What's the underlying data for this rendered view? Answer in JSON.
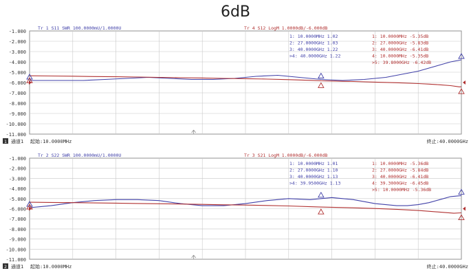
{
  "title": "6dB",
  "colors": {
    "blue": "#4040a8",
    "red": "#b03030",
    "grid": "#c8c8c8",
    "frame": "#909090",
    "text": "#333333"
  },
  "yticks": [
    "-1.000",
    "-2.000",
    "-3.000",
    "-4.000",
    "-5.000",
    "-6.000",
    "-7.000",
    "-8.000",
    "-9.000",
    "-10.000",
    "-11.000"
  ],
  "chart_data": [
    {
      "type": "line",
      "panel_index": 1,
      "header_blue": "Tr 1  S11 SWR 100.0000mU/1.0000U",
      "header_red": "Tr 4  S12 LogM 1.0000dB/-6.000dB",
      "footer_channel": "通道1",
      "footer_start": "起始:10.0000MHz",
      "footer_stop": "终止:40.0000GHz",
      "x_range_ghz": [
        0.01,
        40.0
      ],
      "y_range_display": [
        -11,
        -1
      ],
      "markers_blue": [
        "1:    10.0000MHz  1.02",
        "2:    27.0000GHz  1.03",
        "3:    40.0000GHz  1.22",
        ">4:   40.0000GHz  1.22"
      ],
      "markers_red": [
        "1:    10.0000MHz  -5.35dB",
        "2:    27.0000GHz  -5.83dB",
        "3:    40.0000GHz  -6.41dB",
        "4:    10.0000MHz  -5.35dB",
        ">5:   39.8000GHz  -6.42dB"
      ],
      "series": [
        {
          "name": "S11 SWR",
          "color": "#4040a8",
          "x": [
            0.01,
            1,
            3,
            5,
            7,
            9,
            11,
            13,
            15,
            17,
            19,
            21,
            23,
            25,
            27,
            29,
            31,
            32,
            33,
            34,
            35,
            36,
            37,
            38,
            39,
            40
          ],
          "y": [
            1.02,
            1.02,
            1.02,
            1.02,
            1.03,
            1.04,
            1.05,
            1.04,
            1.03,
            1.03,
            1.04,
            1.06,
            1.07,
            1.05,
            1.03,
            1.02,
            1.03,
            1.04,
            1.05,
            1.07,
            1.09,
            1.11,
            1.14,
            1.17,
            1.2,
            1.22
          ]
        },
        {
          "name": "S12 LogM",
          "color": "#b03030",
          "x": [
            0.01,
            2,
            4,
            6,
            8,
            10,
            12,
            14,
            16,
            18,
            20,
            22,
            24,
            26,
            27,
            28,
            30,
            32,
            34,
            36,
            37,
            38,
            39,
            39.8,
            40
          ],
          "y": [
            -5.35,
            -5.37,
            -5.39,
            -5.42,
            -5.44,
            -5.47,
            -5.5,
            -5.53,
            -5.56,
            -5.6,
            -5.63,
            -5.67,
            -5.72,
            -5.79,
            -5.83,
            -5.85,
            -5.9,
            -5.96,
            -6.02,
            -6.1,
            -6.15,
            -6.22,
            -6.3,
            -6.42,
            -6.41
          ]
        }
      ]
    },
    {
      "type": "line",
      "panel_index": 2,
      "header_blue": "Tr 2  S22 SWR 100.0000mU/1.0000U",
      "header_red": "Tr 3  S21 LogM 1.0000dB/-6.000dB",
      "footer_channel": "通道1",
      "footer_start": "起始:10.0000MHz",
      "footer_stop": "终止:40.0000GHz",
      "x_range_ghz": [
        0.01,
        40.0
      ],
      "y_range_display": [
        -11,
        -1
      ],
      "markers_blue": [
        "1:    10.0000MHz  1.01",
        "2:    27.0000GHz  1.10",
        "3:    40.0000GHz  1.13",
        ">4:   39.9500GHz  1.13"
      ],
      "markers_red": [
        "1:    10.0000MHz  -5.36dB",
        "2:    27.0000GHz  -5.84dB",
        "3:    40.0000GHz  -6.41dB",
        "4:    39.3000GHz  -6.45dB",
        ">5:   10.0000MHz  -5.36dB"
      ],
      "series": [
        {
          "name": "S22 SWR",
          "color": "#4040a8",
          "x": [
            0.01,
            1,
            2,
            4,
            6,
            8,
            10,
            12,
            14,
            16,
            18,
            20,
            22,
            24,
            26,
            27,
            28,
            30,
            32,
            34,
            35,
            36,
            37,
            38,
            39,
            40
          ],
          "y": [
            1.01,
            1.02,
            1.03,
            1.06,
            1.08,
            1.09,
            1.09,
            1.08,
            1.05,
            1.03,
            1.03,
            1.05,
            1.08,
            1.1,
            1.09,
            1.1,
            1.11,
            1.09,
            1.05,
            1.03,
            1.03,
            1.04,
            1.06,
            1.09,
            1.12,
            1.13
          ]
        },
        {
          "name": "S21 LogM",
          "color": "#b03030",
          "x": [
            0.01,
            2,
            4,
            6,
            8,
            10,
            12,
            14,
            16,
            18,
            20,
            22,
            24,
            26,
            27,
            28,
            30,
            32,
            34,
            36,
            38,
            39.3,
            40
          ],
          "y": [
            -5.36,
            -5.38,
            -5.4,
            -5.43,
            -5.45,
            -5.48,
            -5.51,
            -5.54,
            -5.57,
            -5.61,
            -5.64,
            -5.68,
            -5.73,
            -5.8,
            -5.84,
            -5.86,
            -5.91,
            -5.98,
            -6.06,
            -6.18,
            -6.33,
            -6.45,
            -6.41
          ]
        }
      ]
    }
  ]
}
